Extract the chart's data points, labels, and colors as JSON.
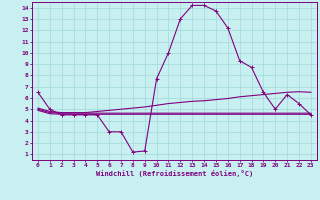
{
  "xlabel": "Windchill (Refroidissement éolien,°C)",
  "ylabel": "",
  "bg_color": "#c8f0f0",
  "grid_color": "#a0d8d8",
  "line_color": "#800080",
  "xlim": [
    -0.5,
    23.5
  ],
  "ylim": [
    0.5,
    14.5
  ],
  "xticks": [
    0,
    1,
    2,
    3,
    4,
    5,
    6,
    7,
    8,
    9,
    10,
    11,
    12,
    13,
    14,
    15,
    16,
    17,
    18,
    19,
    20,
    21,
    22,
    23
  ],
  "yticks": [
    1,
    2,
    3,
    4,
    5,
    6,
    7,
    8,
    9,
    10,
    11,
    12,
    13,
    14
  ],
  "line1_x": [
    0,
    1,
    2,
    3,
    4,
    5,
    6,
    7,
    8,
    9,
    10,
    11,
    12,
    13,
    14,
    15,
    16,
    17,
    18,
    19,
    20,
    21,
    22,
    23
  ],
  "line1_y": [
    6.5,
    5.0,
    4.5,
    4.5,
    4.5,
    4.5,
    3.0,
    3.0,
    1.2,
    1.3,
    7.7,
    10.0,
    13.0,
    14.2,
    14.2,
    13.7,
    12.2,
    9.3,
    8.7,
    6.5,
    5.0,
    6.3,
    5.5,
    4.5
  ],
  "line2_x": [
    0,
    1,
    2,
    3,
    4,
    5,
    6,
    7,
    8,
    9,
    10,
    11,
    12,
    13,
    14,
    15,
    16,
    17,
    18,
    19,
    20,
    21,
    22,
    23
  ],
  "line2_y": [
    5.1,
    4.8,
    4.7,
    4.7,
    4.7,
    4.8,
    4.9,
    5.0,
    5.1,
    5.2,
    5.35,
    5.5,
    5.6,
    5.7,
    5.75,
    5.85,
    5.95,
    6.1,
    6.2,
    6.3,
    6.4,
    6.5,
    6.55,
    6.5
  ],
  "line3_x": [
    0,
    1,
    2,
    3,
    4,
    5,
    6,
    7,
    8,
    9,
    10,
    11,
    12,
    13,
    14,
    15,
    16,
    17,
    18,
    19,
    20,
    21,
    22,
    23
  ],
  "line3_y": [
    5.0,
    4.7,
    4.65,
    4.65,
    4.65,
    4.65,
    4.65,
    4.65,
    4.65,
    4.65,
    4.65,
    4.65,
    4.65,
    4.65,
    4.65,
    4.65,
    4.65,
    4.65,
    4.65,
    4.65,
    4.65,
    4.65,
    4.65,
    4.65
  ],
  "line4_x": [
    0,
    1,
    2,
    3,
    4,
    5,
    6,
    7,
    8,
    9,
    10,
    11,
    12,
    13,
    14,
    15,
    16,
    17,
    18,
    19,
    20,
    21,
    22,
    23
  ],
  "line4_y": [
    4.9,
    4.6,
    4.55,
    4.55,
    4.55,
    4.55,
    4.55,
    4.55,
    4.55,
    4.55,
    4.55,
    4.55,
    4.55,
    4.55,
    4.55,
    4.55,
    4.55,
    4.55,
    4.55,
    4.55,
    4.55,
    4.55,
    4.55,
    4.55
  ]
}
